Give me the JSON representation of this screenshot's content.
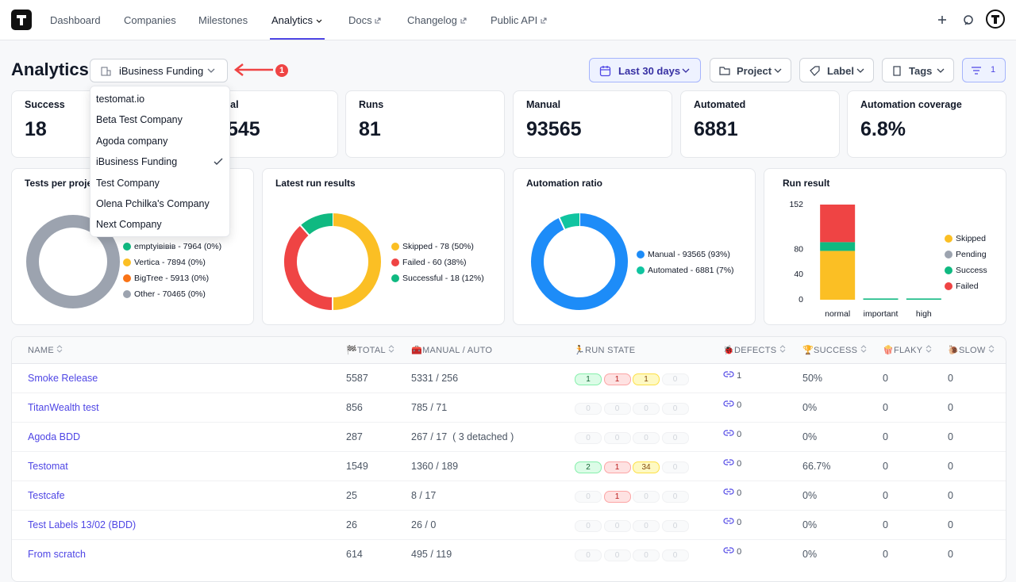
{
  "nav": {
    "items": [
      "Dashboard",
      "Companies",
      "Milestones",
      "Analytics",
      "Docs",
      "Changelog",
      "Public API"
    ],
    "active": 3
  },
  "header": {
    "title": "Analytics",
    "company": "iBusiness Funding",
    "annotation": "1"
  },
  "filters": {
    "date": "Last 30 days",
    "project": "Project",
    "label": "Label",
    "tags": "Tags",
    "filter_count": "1"
  },
  "stats": [
    {
      "label": "Success",
      "value": "18"
    },
    {
      "label": "tal",
      "value": "545"
    },
    {
      "label": "Runs",
      "value": "81"
    },
    {
      "label": "Manual",
      "value": "93565"
    },
    {
      "label": "Automated",
      "value": "6881"
    },
    {
      "label": "Automation coverage",
      "value": "6.8%"
    }
  ],
  "tests_per_project": {
    "title": "Tests per proje",
    "legend": [
      {
        "label": "emptyівівів - 7964 (0%)",
        "color": "#10b981"
      },
      {
        "label": "Vertica - 7894 (0%)",
        "color": "#fbbf24"
      },
      {
        "label": "BigTree - 5913 (0%)",
        "color": "#f97316"
      },
      {
        "label": "Other - 70465 (0%)",
        "color": "#9ca3af"
      }
    ]
  },
  "latest_run": {
    "title": "Latest run results",
    "series": [
      {
        "name": "Skipped - 78 (50%)",
        "value": 78,
        "color": "#fbbf24"
      },
      {
        "name": "Failed - 60 (38%)",
        "value": 60,
        "color": "#ef4444"
      },
      {
        "name": "Successful - 18 (12%)",
        "value": 18,
        "color": "#10b981"
      }
    ]
  },
  "automation_ratio": {
    "title": "Automation ratio",
    "series": [
      {
        "name": "Manual - 93565 (93%)",
        "value": 93565,
        "color": "#1d8cf8"
      },
      {
        "name": "Automated - 6881 (7%)",
        "value": 6881,
        "color": "#10c4a0"
      }
    ]
  },
  "run_result": {
    "title": "Run result",
    "categories": [
      "normal",
      "important",
      "high"
    ],
    "ylim": [
      0,
      152
    ],
    "yticks": [
      0,
      40,
      80,
      152
    ],
    "series": [
      {
        "name": "Skipped",
        "color": "#fbbf24",
        "values": [
          78,
          0,
          0
        ]
      },
      {
        "name": "Pending",
        "color": "#9ca3af",
        "values": [
          0,
          0,
          0
        ]
      },
      {
        "name": "Success",
        "color": "#10b981",
        "values": [
          14,
          2,
          2
        ]
      },
      {
        "name": "Failed",
        "color": "#ef4444",
        "values": [
          60,
          0,
          0
        ]
      }
    ]
  },
  "table": {
    "columns": [
      "NAME",
      "🏁TOTAL",
      "🧰MANUAL / AUTO",
      "🏃RUN STATE",
      "🐞DEFECTS",
      "🏆SUCCESS",
      "🍿FLAKY",
      "🐌SLOW"
    ],
    "rows": [
      {
        "name": "Smoke Release",
        "total": "5587",
        "manual_auto": "5331 / 256",
        "run_state": [
          "1",
          "1",
          "1",
          "0"
        ],
        "defects": "1",
        "success": "50%",
        "flaky": "0",
        "slow": "0"
      },
      {
        "name": "TitanWealth test",
        "total": "856",
        "manual_auto": "785 / 71",
        "run_state": [
          "0",
          "0",
          "0",
          "0"
        ],
        "defects": "0",
        "success": "0%",
        "flaky": "0",
        "slow": "0"
      },
      {
        "name": "Agoda BDD",
        "total": "287",
        "manual_auto": "267 / 17  ( 3 detached )",
        "run_state": [
          "0",
          "0",
          "0",
          "0"
        ],
        "defects": "0",
        "success": "0%",
        "flaky": "0",
        "slow": "0"
      },
      {
        "name": "Testomat",
        "total": "1549",
        "manual_auto": "1360 / 189",
        "run_state": [
          "2",
          "1",
          "34",
          "0"
        ],
        "defects": "0",
        "success": "66.7%",
        "flaky": "0",
        "slow": "0"
      },
      {
        "name": "Testcafe",
        "total": "25",
        "manual_auto": "8 / 17",
        "run_state": [
          "0",
          "1",
          "0",
          "0"
        ],
        "defects": "0",
        "success": "0%",
        "flaky": "0",
        "slow": "0"
      },
      {
        "name": "Test Labels 13/02 (BDD)",
        "total": "26",
        "manual_auto": "26 / 0",
        "run_state": [
          "0",
          "0",
          "0",
          "0"
        ],
        "defects": "0",
        "success": "0%",
        "flaky": "0",
        "slow": "0"
      },
      {
        "name": "From scratch",
        "total": "614",
        "manual_auto": "495 / 119",
        "run_state": [
          "0",
          "0",
          "0",
          "0"
        ],
        "defects": "0",
        "success": "0%",
        "flaky": "0",
        "slow": "0"
      }
    ]
  },
  "dropdown": {
    "items": [
      "testomat.io",
      "Beta Test Company",
      "Agoda company",
      "iBusiness Funding",
      "Test Company",
      "Olena Pchilka's Company",
      "Next Company"
    ],
    "selected": 3
  }
}
